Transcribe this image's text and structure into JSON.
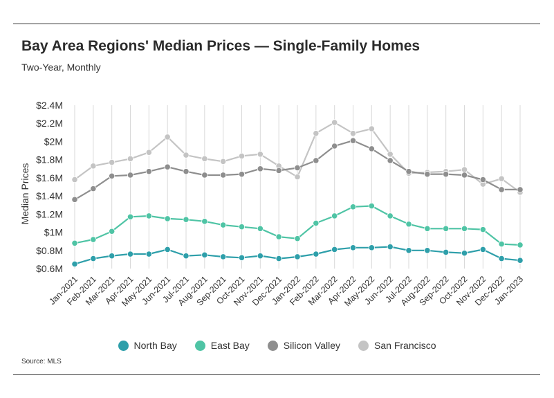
{
  "header": {
    "title": "Bay Area Regions' Median Prices — Single-Family Homes",
    "subtitle": "Two-Year, Monthly"
  },
  "footer": {
    "source": "Source:  MLS"
  },
  "chart_data": {
    "type": "line",
    "title": "Bay Area Regions' Median Prices — Single-Family Homes",
    "subtitle": "Two-Year, Monthly",
    "ylabel": "Median Prices",
    "xlabel": "",
    "ylim": [
      0.6,
      2.4
    ],
    "yticks": [
      0.6,
      0.8,
      1.0,
      1.2,
      1.4,
      1.6,
      1.8,
      2.0,
      2.2,
      2.4
    ],
    "ytick_labels": [
      "$0.6M",
      "$0.8M",
      "$1M",
      "$1.2M",
      "$1.4M",
      "$1.6M",
      "$1.8M",
      "$2M",
      "$2.2M",
      "$2.4M"
    ],
    "grid": "vertical lines at each month",
    "legend_position": "bottom",
    "categories": [
      "Jan-2021",
      "Feb-2021",
      "Mar-2021",
      "Apr-2021",
      "May-2021",
      "Jun-2021",
      "Jul-2021",
      "Aug-2021",
      "Sep-2021",
      "Oct-2021",
      "Nov-2021",
      "Dec-2021",
      "Jan-2022",
      "Feb-2022",
      "Mar-2022",
      "Apr-2022",
      "May-2022",
      "Jun-2022",
      "Jul-2022",
      "Aug-2022",
      "Sep-2022",
      "Oct-2022",
      "Nov-2022",
      "Dec-2022",
      "Jan-2023"
    ],
    "series": [
      {
        "name": "North Bay",
        "color": "#2e9faa",
        "values": [
          0.65,
          0.71,
          0.74,
          0.76,
          0.76,
          0.81,
          0.74,
          0.75,
          0.73,
          0.72,
          0.74,
          0.71,
          0.73,
          0.76,
          0.81,
          0.83,
          0.83,
          0.84,
          0.8,
          0.8,
          0.78,
          0.77,
          0.81,
          0.71,
          0.69
        ]
      },
      {
        "name": "East Bay",
        "color": "#4fc4a5",
        "values": [
          0.88,
          0.92,
          1.01,
          1.17,
          1.18,
          1.15,
          1.14,
          1.12,
          1.08,
          1.06,
          1.04,
          0.95,
          0.93,
          1.1,
          1.18,
          1.28,
          1.29,
          1.18,
          1.09,
          1.04,
          1.04,
          1.04,
          1.03,
          0.87,
          0.86
        ]
      },
      {
        "name": "Silicon Valley",
        "color": "#8e8e8e",
        "values": [
          1.36,
          1.48,
          1.62,
          1.63,
          1.67,
          1.72,
          1.67,
          1.63,
          1.63,
          1.64,
          1.7,
          1.68,
          1.71,
          1.79,
          1.95,
          2.01,
          1.92,
          1.79,
          1.67,
          1.64,
          1.64,
          1.63,
          1.58,
          1.47,
          1.47
        ]
      },
      {
        "name": "San Francisco",
        "color": "#c4c4c4",
        "values": [
          1.58,
          1.73,
          1.77,
          1.81,
          1.88,
          2.05,
          1.85,
          1.81,
          1.78,
          1.84,
          1.86,
          1.73,
          1.61,
          2.09,
          2.21,
          2.09,
          2.14,
          1.86,
          1.65,
          1.66,
          1.67,
          1.69,
          1.53,
          1.59,
          1.44
        ]
      }
    ]
  }
}
